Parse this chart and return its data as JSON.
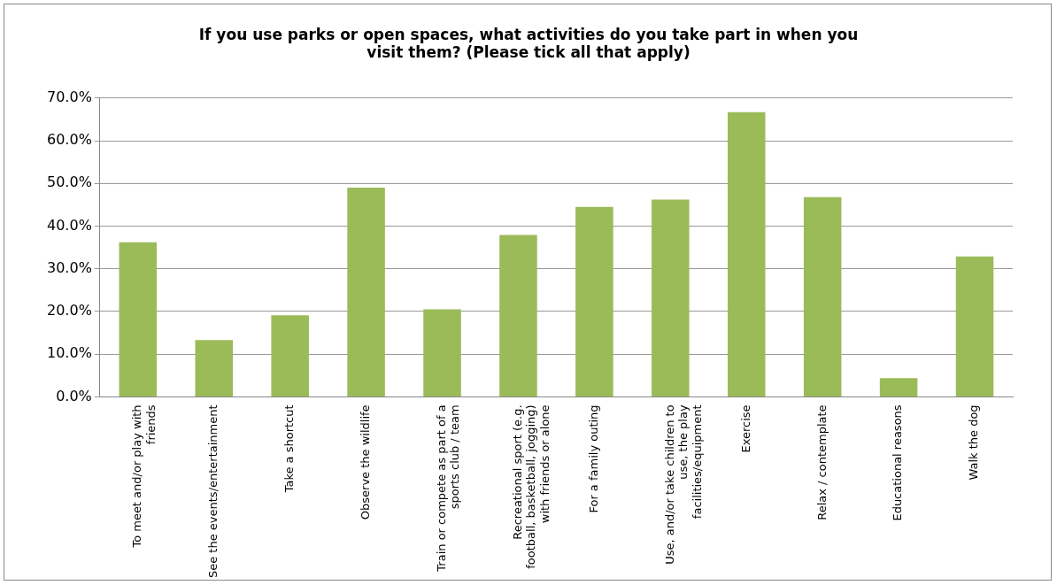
{
  "chart_data": {
    "type": "bar",
    "title": "If you use parks or open spaces, what activities do you take part in when you visit them? (Please tick all that apply)",
    "categories": [
      "To meet and/or play with friends",
      "See the events/entertainment",
      "Take a shortcut",
      "Observe the wildlife",
      "Train or compete as part of a sports club / team",
      "Recreational sport (e.g. football, basketball, jogging) with friends or alone",
      "For a family outing",
      "Use, and/or take children to use, the play facilities/equipment",
      "Exercise",
      "Relax / contemplate",
      "Educational reasons",
      "Walk the dog"
    ],
    "values": [
      36.2,
      13.3,
      19.1,
      49.0,
      20.5,
      37.9,
      44.5,
      46.2,
      66.7,
      46.8,
      4.4,
      32.9
    ],
    "color": "#9bbb59",
    "ylim": [
      0,
      70
    ],
    "yticks": [
      {
        "value": 0,
        "label": "0.0%"
      },
      {
        "value": 10,
        "label": "10.0%"
      },
      {
        "value": 20,
        "label": "20.0%"
      },
      {
        "value": 30,
        "label": "30.0%"
      },
      {
        "value": 40,
        "label": "40.0%"
      },
      {
        "value": 50,
        "label": "50.0%"
      },
      {
        "value": 60,
        "label": "60.0%"
      },
      {
        "value": 70,
        "label": "70.0%"
      }
    ],
    "grid": "y",
    "legend": false
  }
}
